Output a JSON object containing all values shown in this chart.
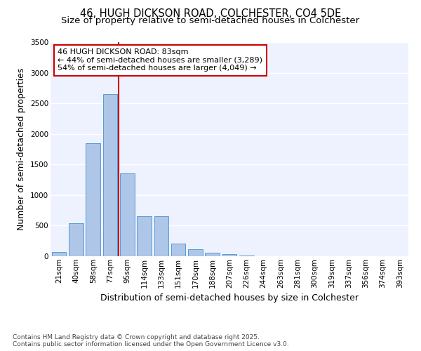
{
  "title_line1": "46, HUGH DICKSON ROAD, COLCHESTER, CO4 5DE",
  "title_line2": "Size of property relative to semi-detached houses in Colchester",
  "xlabel": "Distribution of semi-detached houses by size in Colchester",
  "ylabel": "Number of semi-detached properties",
  "footer": "Contains HM Land Registry data © Crown copyright and database right 2025.\nContains public sector information licensed under the Open Government Licence v3.0.",
  "categories": [
    "21sqm",
    "40sqm",
    "58sqm",
    "77sqm",
    "95sqm",
    "114sqm",
    "133sqm",
    "151sqm",
    "170sqm",
    "188sqm",
    "207sqm",
    "226sqm",
    "244sqm",
    "263sqm",
    "281sqm",
    "300sqm",
    "319sqm",
    "337sqm",
    "356sqm",
    "374sqm",
    "393sqm"
  ],
  "values": [
    70,
    540,
    1850,
    2650,
    1350,
    650,
    650,
    210,
    110,
    60,
    30,
    15,
    5,
    2,
    1,
    0,
    0,
    0,
    0,
    0,
    0
  ],
  "bar_color": "#aec6e8",
  "bar_edge_color": "#5b9bd5",
  "background_color": "#eef2ff",
  "grid_color": "#ffffff",
  "red_line_x": 3.5,
  "subject_label": "46 HUGH DICKSON ROAD: 83sqm",
  "pct_smaller": "44% of semi-detached houses are smaller (3,289)",
  "pct_larger": "54% of semi-detached houses are larger (4,049)",
  "annotation_box_color": "#ffffff",
  "annotation_border_color": "#cc0000",
  "ylim": [
    0,
    3500
  ],
  "yticks": [
    0,
    500,
    1000,
    1500,
    2000,
    2500,
    3000,
    3500
  ],
  "title_fontsize": 10.5,
  "subtitle_fontsize": 9.5,
  "axis_label_fontsize": 9,
  "tick_fontsize": 7.5,
  "annotation_fontsize": 8,
  "footer_fontsize": 6.5
}
